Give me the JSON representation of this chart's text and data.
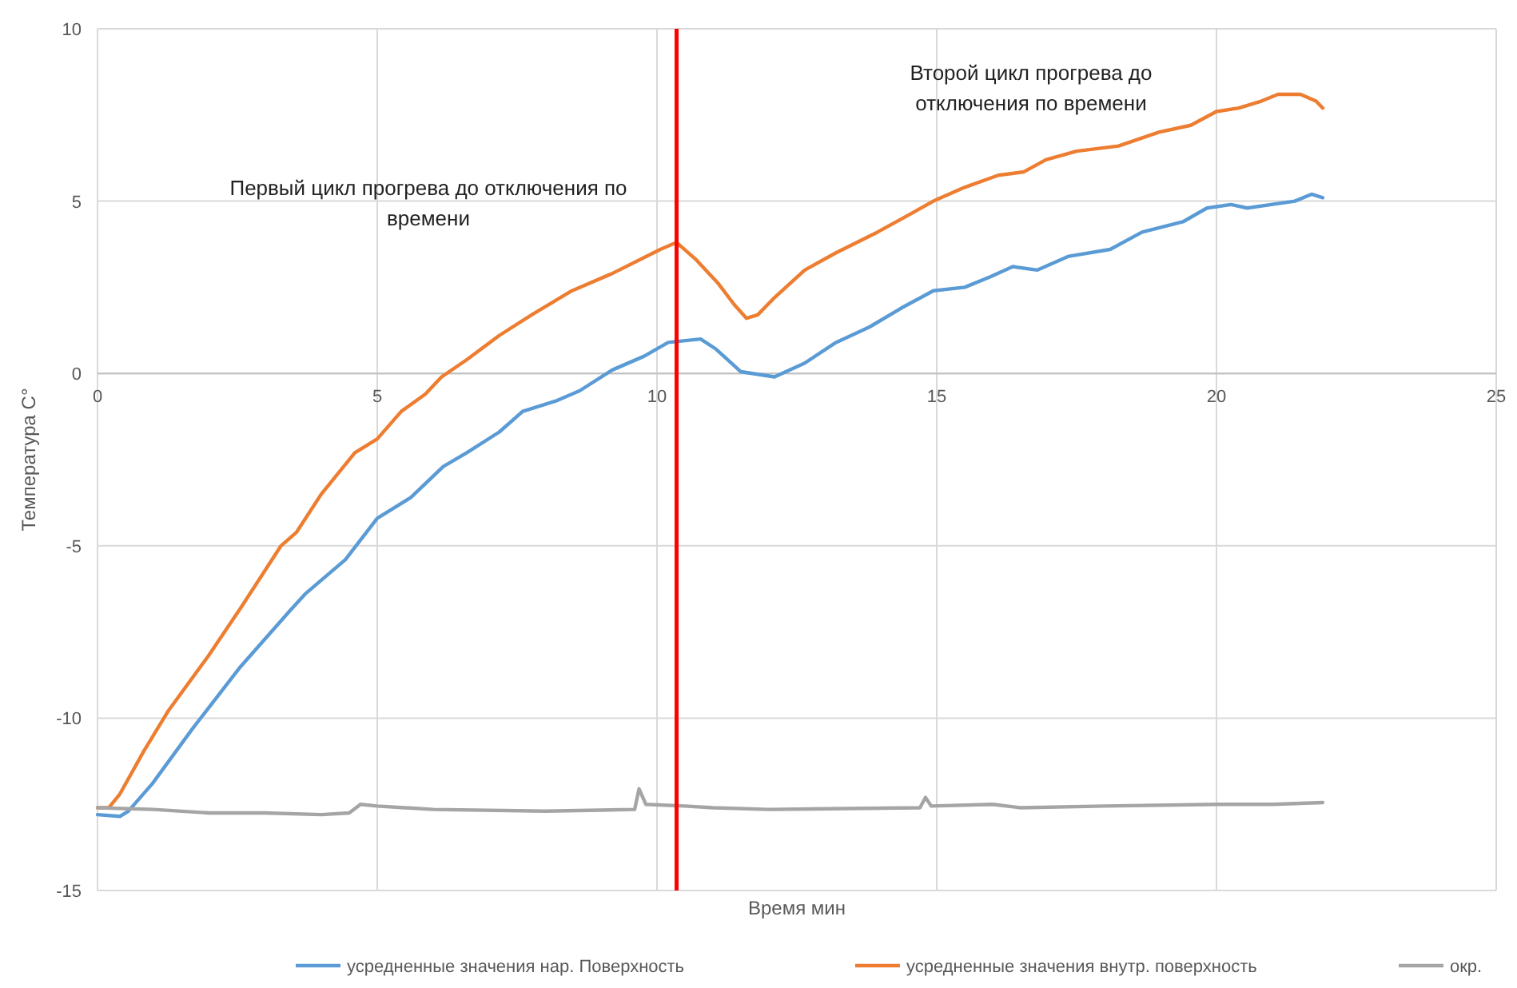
{
  "chart_data": {
    "type": "line",
    "xlabel": "Время мин",
    "ylabel": "Температура С°",
    "xlim": [
      0,
      25
    ],
    "ylim": [
      -15,
      10
    ],
    "xticks": [
      0,
      5,
      10,
      15,
      20,
      25
    ],
    "yticks": [
      -15,
      -10,
      -5,
      0,
      5,
      10
    ],
    "grid": true,
    "legend": "bottom",
    "marker": "none",
    "line_style": "solid",
    "annotations": [
      "Первый цикл прогрева до отключения по времени",
      "Второй цикл прогрева до отключения по времени"
    ],
    "ref_lines": [
      {
        "axis": "x",
        "value": 10.35,
        "color": "#ff0000"
      }
    ],
    "series": [
      {
        "name": "усредненные значения нар. Поверхность",
        "color": "#5b9bd5",
        "x": [
          0,
          0.4,
          0.55,
          0.98,
          1.7,
          2.56,
          3.43,
          3.71,
          4.43,
          5.0,
          5.6,
          6.18,
          6.6,
          7.18,
          7.6,
          8.19,
          8.62,
          9.2,
          9.77,
          10.2,
          10.78,
          11.06,
          11.5,
          12.1,
          12.64,
          13.2,
          13.8,
          14.37,
          14.94,
          15.5,
          15.95,
          16.36,
          16.8,
          17.36,
          18.1,
          18.67,
          19.4,
          19.83,
          20.26,
          20.55,
          20.98,
          21.4,
          21.7,
          21.9
        ],
        "values": [
          -12.8,
          -12.85,
          -12.7,
          -11.9,
          -10.3,
          -8.5,
          -6.9,
          -6.4,
          -5.4,
          -4.2,
          -3.6,
          -2.7,
          -2.3,
          -1.7,
          -1.1,
          -0.8,
          -0.5,
          0.1,
          0.5,
          0.9,
          1.0,
          0.7,
          0.05,
          -0.1,
          0.3,
          0.9,
          1.35,
          1.9,
          2.4,
          2.5,
          2.8,
          3.1,
          3.0,
          3.4,
          3.6,
          4.1,
          4.4,
          4.8,
          4.9,
          4.8,
          4.9,
          5.0,
          5.2,
          5.1
        ]
      },
      {
        "name": "усредненные значения внутр. поверхность",
        "color": "#ed7d31",
        "x": [
          0,
          0.2,
          0.4,
          0.83,
          1.26,
          1.98,
          2.56,
          3.28,
          3.56,
          4.0,
          4.6,
          5.0,
          5.43,
          5.86,
          6.15,
          6.6,
          7.18,
          7.76,
          8.48,
          9.2,
          10.06,
          10.35,
          10.7,
          11.1,
          11.38,
          11.6,
          11.8,
          12.1,
          12.64,
          13.2,
          13.94,
          14.5,
          14.94,
          15.5,
          16.1,
          16.56,
          16.95,
          17.5,
          18.25,
          18.97,
          19.54,
          20.0,
          20.4,
          20.8,
          21.1,
          21.5,
          21.78,
          21.9
        ],
        "values": [
          -12.6,
          -12.6,
          -12.2,
          -10.95,
          -9.8,
          -8.2,
          -6.8,
          -5.0,
          -4.6,
          -3.5,
          -2.3,
          -1.9,
          -1.1,
          -0.6,
          -0.1,
          0.4,
          1.1,
          1.7,
          2.4,
          2.9,
          3.6,
          3.8,
          3.3,
          2.6,
          2.0,
          1.6,
          1.7,
          2.2,
          3.0,
          3.5,
          4.1,
          4.6,
          5.0,
          5.4,
          5.75,
          5.85,
          6.2,
          6.45,
          6.6,
          7.0,
          7.2,
          7.6,
          7.7,
          7.9,
          8.1,
          8.1,
          7.9,
          7.7
        ]
      },
      {
        "name": "окр.",
        "color": "#a5a5a5",
        "x": [
          0,
          1,
          2,
          3,
          4,
          4.5,
          4.7,
          5,
          6,
          8,
          9.6,
          9.68,
          9.8,
          10.5,
          11,
          12,
          14.7,
          14.8,
          14.9,
          16,
          16.5,
          18,
          20,
          21,
          21.9
        ],
        "values": [
          -12.6,
          -12.65,
          -12.75,
          -12.75,
          -12.8,
          -12.75,
          -12.5,
          -12.55,
          -12.65,
          -12.7,
          -12.65,
          -12.05,
          -12.5,
          -12.55,
          -12.6,
          -12.65,
          -12.6,
          -12.3,
          -12.55,
          -12.5,
          -12.6,
          -12.55,
          -12.5,
          -12.5,
          -12.45
        ]
      }
    ]
  }
}
